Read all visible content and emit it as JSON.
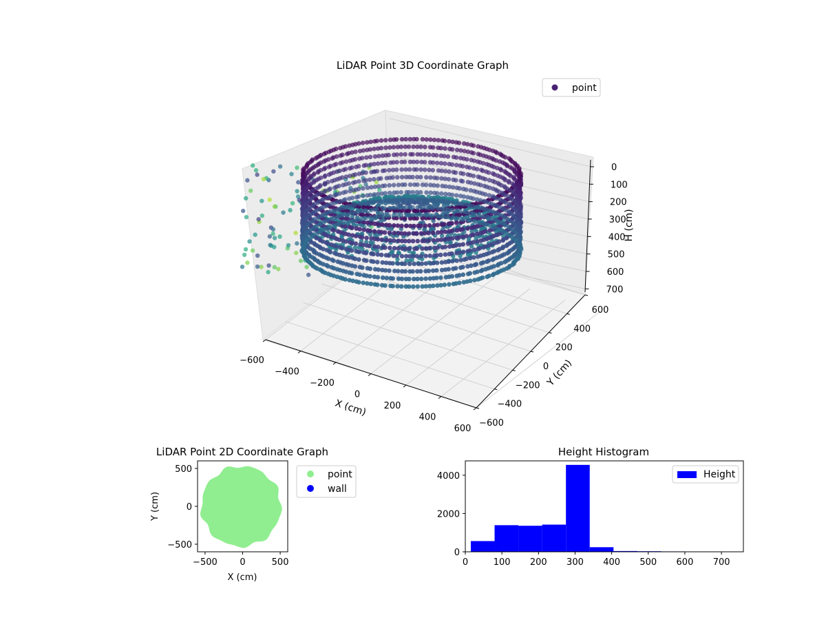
{
  "chart_data": [
    {
      "type": "scatter",
      "subtype": "3d",
      "title": "LiDAR Point 3D Coordinate Graph",
      "xlabel": "X (cm)",
      "ylabel": "Y (cm)",
      "zlabel": "H (cm)",
      "xticks": [
        "−600",
        "−400",
        "−200",
        "0",
        "200",
        "400",
        "600"
      ],
      "yticks": [
        "−600",
        "−400",
        "−200",
        "0",
        "200",
        "400",
        "600"
      ],
      "zticks": [
        "0",
        "100",
        "200",
        "300",
        "400",
        "500",
        "600",
        "700"
      ],
      "xlim": [
        -600,
        600
      ],
      "ylim": [
        -600,
        600
      ],
      "zlim": [
        0,
        750
      ],
      "z_inverted": true,
      "colormap": "viridis",
      "legend": {
        "position": "top-right",
        "entries": [
          {
            "label": "point",
            "color": "#440154"
          }
        ]
      },
      "grid": true,
      "description_values": {
        "ring_radius": 500,
        "ring_height_range": [
          0,
          350
        ],
        "point_count_estimate": 10000
      }
    },
    {
      "type": "scatter",
      "title": "LiDAR Point 2D Coordinate Graph",
      "xlabel": "X (cm)",
      "ylabel": "Y (cm)",
      "xticks": [
        "−500",
        "0",
        "500"
      ],
      "yticks": [
        "500",
        "0",
        "−500"
      ],
      "xlim": [
        -600,
        600
      ],
      "ylim": [
        -600,
        600
      ],
      "legend": {
        "position": "outside-right",
        "entries": [
          {
            "label": "point",
            "color": "#90ee90"
          },
          {
            "label": "wall",
            "color": "#0000ff"
          }
        ]
      },
      "series": [
        {
          "name": "point",
          "color": "#90ee90",
          "shape": "disc",
          "center": [
            -20,
            0
          ],
          "radius": 530
        },
        {
          "name": "wall",
          "color": "#0000ff",
          "values": []
        }
      ]
    },
    {
      "type": "bar",
      "subtype": "histogram",
      "title": "Height Histogram",
      "xticks": [
        "0",
        "100",
        "200",
        "300",
        "400",
        "500",
        "600",
        "700"
      ],
      "yticks": [
        "0",
        "2000",
        "4000"
      ],
      "xlim": [
        0,
        760
      ],
      "ylim": [
        0,
        4750
      ],
      "legend": {
        "position": "top-right",
        "entries": [
          {
            "label": "Height",
            "color": "#0000ff"
          }
        ]
      },
      "series": [
        {
          "name": "Height",
          "color": "#0000ff",
          "bin_edges": [
            15,
            80,
            145,
            210,
            275,
            340,
            405,
            470,
            535,
            600,
            665
          ],
          "values": [
            560,
            1390,
            1360,
            1420,
            4540,
            240,
            40,
            30,
            20,
            10
          ]
        }
      ]
    }
  ]
}
